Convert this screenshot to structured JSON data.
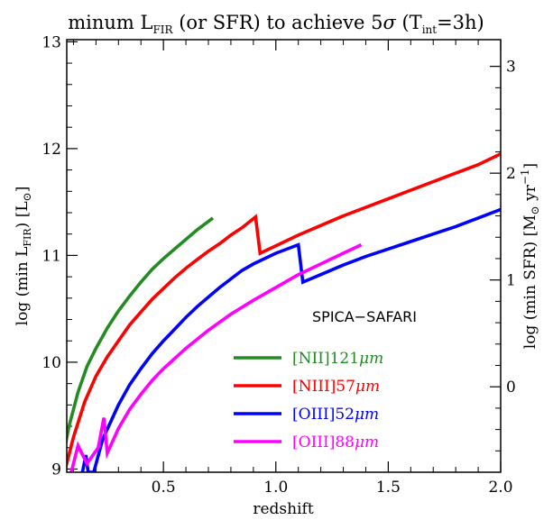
{
  "chart_data": {
    "type": "line",
    "title": {
      "prefix": "minum L",
      "prefix_sub": "FIR",
      "middle": " (or SFR) to achieve 5",
      "sigma": "σ",
      "paren_open": " (T",
      "time_sub": "int",
      "suffix": "=3h)"
    },
    "xlabel": "redshift",
    "ylabel": {
      "main": "log (min L",
      "sub": "FIR",
      "unit": ") [L",
      "sun": "⊙",
      "close": "]"
    },
    "ylabel_right": {
      "main": "log (min SFR) [M",
      "sun": "⊙",
      "unit": " yr",
      "exp": "−1",
      "close": "]"
    },
    "xlim": [
      0.07,
      2.0
    ],
    "ylim": [
      8.97,
      13.02
    ],
    "y2lim": [
      -0.8,
      3.25
    ],
    "x_ticks": [
      {
        "value": 0.5,
        "label": "0.5"
      },
      {
        "value": 1.0,
        "label": "1.0"
      },
      {
        "value": 1.5,
        "label": "1.5"
      },
      {
        "value": 2.0,
        "label": "2.0"
      }
    ],
    "y_ticks": [
      {
        "value": 9,
        "label": "9"
      },
      {
        "value": 10,
        "label": "10"
      },
      {
        "value": 11,
        "label": "11"
      },
      {
        "value": 12,
        "label": "12"
      },
      {
        "value": 13,
        "label": "13"
      }
    ],
    "y2_ticks": [
      {
        "value": 0,
        "label": "0"
      },
      {
        "value": 1,
        "label": "1"
      },
      {
        "value": 2,
        "label": "2"
      },
      {
        "value": 3,
        "label": "3"
      }
    ],
    "annotation": "SPICA−SAFARI",
    "legend": {
      "placement": "lower-center"
    },
    "series": [
      {
        "name": "[NII]121",
        "unit": "μm",
        "color": "#228b22",
        "points": [
          [
            0.04,
            8.97
          ],
          [
            0.08,
            9.4
          ],
          [
            0.12,
            9.72
          ],
          [
            0.16,
            9.96
          ],
          [
            0.2,
            10.13
          ],
          [
            0.25,
            10.32
          ],
          [
            0.3,
            10.48
          ],
          [
            0.35,
            10.62
          ],
          [
            0.4,
            10.75
          ],
          [
            0.45,
            10.87
          ],
          [
            0.5,
            10.97
          ],
          [
            0.55,
            11.06
          ],
          [
            0.6,
            11.15
          ],
          [
            0.65,
            11.24
          ],
          [
            0.72,
            11.35
          ]
        ]
      },
      {
        "name": "[NIII]57",
        "unit": "μm",
        "color": "#ff0000",
        "points": [
          [
            0.06,
            8.97
          ],
          [
            0.1,
            9.3
          ],
          [
            0.15,
            9.63
          ],
          [
            0.2,
            9.87
          ],
          [
            0.25,
            10.05
          ],
          [
            0.3,
            10.2
          ],
          [
            0.35,
            10.35
          ],
          [
            0.4,
            10.47
          ],
          [
            0.45,
            10.59
          ],
          [
            0.5,
            10.69
          ],
          [
            0.55,
            10.79
          ],
          [
            0.6,
            10.88
          ],
          [
            0.65,
            10.96
          ],
          [
            0.7,
            11.04
          ],
          [
            0.75,
            11.11
          ],
          [
            0.8,
            11.19
          ],
          [
            0.85,
            11.26
          ],
          [
            0.91,
            11.36
          ],
          [
            0.93,
            11.02
          ],
          [
            1.0,
            11.09
          ],
          [
            1.1,
            11.19
          ],
          [
            1.2,
            11.28
          ],
          [
            1.3,
            11.37
          ],
          [
            1.4,
            11.45
          ],
          [
            1.5,
            11.53
          ],
          [
            1.6,
            11.61
          ],
          [
            1.7,
            11.69
          ],
          [
            1.8,
            11.77
          ],
          [
            1.9,
            11.85
          ],
          [
            2.0,
            11.95
          ]
        ]
      },
      {
        "name": "[OIII]52",
        "unit": "μm",
        "color": "#0000ff",
        "points": [
          [
            0.14,
            8.97
          ],
          [
            0.155,
            9.13
          ],
          [
            0.165,
            8.97
          ],
          [
            0.19,
            8.97
          ],
          [
            0.23,
            9.28
          ],
          [
            0.3,
            9.6
          ],
          [
            0.35,
            9.79
          ],
          [
            0.4,
            9.94
          ],
          [
            0.45,
            10.08
          ],
          [
            0.5,
            10.2
          ],
          [
            0.55,
            10.31
          ],
          [
            0.6,
            10.42
          ],
          [
            0.65,
            10.52
          ],
          [
            0.7,
            10.61
          ],
          [
            0.75,
            10.7
          ],
          [
            0.8,
            10.78
          ],
          [
            0.85,
            10.86
          ],
          [
            0.9,
            10.92
          ],
          [
            1.0,
            11.02
          ],
          [
            1.1,
            11.1
          ],
          [
            1.12,
            10.75
          ],
          [
            1.2,
            10.82
          ],
          [
            1.3,
            10.91
          ],
          [
            1.4,
            10.99
          ],
          [
            1.5,
            11.06
          ],
          [
            1.6,
            11.13
          ],
          [
            1.7,
            11.2
          ],
          [
            1.8,
            11.27
          ],
          [
            1.9,
            11.35
          ],
          [
            2.0,
            11.43
          ]
        ]
      },
      {
        "name": "[OIII]88",
        "unit": "μm",
        "color": "#ff00ff",
        "points": [
          [
            0.09,
            8.97
          ],
          [
            0.12,
            9.22
          ],
          [
            0.16,
            9.05
          ],
          [
            0.21,
            9.2
          ],
          [
            0.235,
            9.48
          ],
          [
            0.25,
            9.15
          ],
          [
            0.3,
            9.38
          ],
          [
            0.35,
            9.56
          ],
          [
            0.4,
            9.7
          ],
          [
            0.45,
            9.83
          ],
          [
            0.5,
            9.94
          ],
          [
            0.6,
            10.13
          ],
          [
            0.7,
            10.3
          ],
          [
            0.8,
            10.45
          ],
          [
            0.9,
            10.58
          ],
          [
            1.0,
            10.7
          ],
          [
            1.1,
            10.82
          ],
          [
            1.2,
            10.92
          ],
          [
            1.3,
            11.02
          ],
          [
            1.38,
            11.1
          ]
        ]
      }
    ]
  }
}
